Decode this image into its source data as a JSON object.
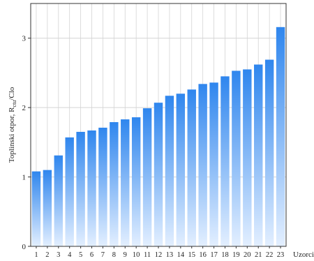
{
  "chart_data": {
    "type": "bar",
    "categories": [
      "1",
      "2",
      "3",
      "4",
      "5",
      "6",
      "7",
      "8",
      "9",
      "10",
      "11",
      "12",
      "13",
      "14",
      "15",
      "16",
      "17",
      "18",
      "19",
      "20",
      "21",
      "22",
      "23"
    ],
    "values": [
      1.08,
      1.1,
      1.31,
      1.57,
      1.65,
      1.67,
      1.71,
      1.79,
      1.83,
      1.86,
      1.99,
      2.07,
      2.17,
      2.2,
      2.26,
      2.34,
      2.36,
      2.45,
      2.53,
      2.55,
      2.62,
      2.69,
      3.16
    ],
    "xlabel": "Uzorci",
    "ylabel_main": "Toplinski otpor, R",
    "ylabel_sub": "ctu",
    "ylabel_tail": "/Clo",
    "ylim": [
      0,
      3.5
    ],
    "yticks": [
      0,
      1,
      2,
      3
    ],
    "grid": true,
    "colors": {
      "bar_top": "#2f86ee",
      "bar_bottom": "#e3efff",
      "grid": "#d4d4d4",
      "axis": "#333333"
    }
  }
}
